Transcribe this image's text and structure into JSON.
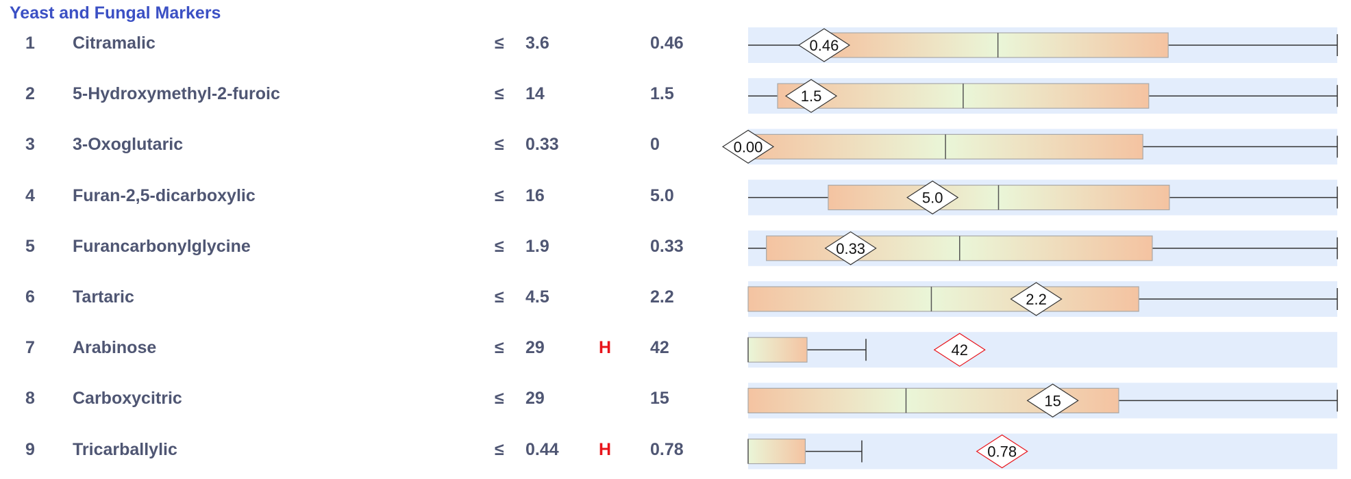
{
  "section": {
    "title": "Yeast and Fungal Markers"
  },
  "le_symbol": "≤",
  "colors": {
    "title": "#3b50c4",
    "text": "#4f5673",
    "flag": "#e8141b",
    "band": "#e3edfc",
    "box_outer": "#f4c3a1",
    "box_inner": "#eaf6d8",
    "diamond_high_border": "#e8141b"
  },
  "rows": [
    {
      "num": "1",
      "name": "Citramalic",
      "ref": "3.6",
      "flag": "",
      "value": "0.46",
      "marker_label": "0.46",
      "range_min": 0,
      "range_max": 3.6,
      "pos": 0.129,
      "box_end": 0.713,
      "median": 0.424,
      "whisker_end": 1.0,
      "high": false
    },
    {
      "num": "2",
      "name": "5-Hydroxymethyl-2-furoic",
      "ref": "14",
      "flag": "",
      "value": "1.5",
      "marker_label": "1.5",
      "range_min": 0,
      "range_max": 14,
      "pos": 0.107,
      "box_start": 0.05,
      "box_end": 0.68,
      "median": 0.365,
      "whisker_end": 1.0,
      "high": false
    },
    {
      "num": "3",
      "name": "3-Oxoglutaric",
      "ref": "0.33",
      "flag": "",
      "value": "0",
      "marker_label": "0.00",
      "range_min": 0,
      "range_max": 0.33,
      "pos": 0.0,
      "box_start": 0.0,
      "box_end": 0.67,
      "median": 0.335,
      "whisker_end": 1.0,
      "high": false
    },
    {
      "num": "4",
      "name": "Furan-2,5-dicarboxylic",
      "ref": "16",
      "flag": "",
      "value": "5.0",
      "marker_label": "5.0",
      "range_min": 0,
      "range_max": 16,
      "pos": 0.313,
      "box_start": 0.136,
      "box_end": 0.715,
      "median": 0.425,
      "whisker_end": 1.0,
      "high": false
    },
    {
      "num": "5",
      "name": "Furancarbonylglycine",
      "ref": "1.9",
      "flag": "",
      "value": "0.33",
      "marker_label": "0.33",
      "range_min": 0,
      "range_max": 1.9,
      "pos": 0.174,
      "box_start": 0.031,
      "box_end": 0.686,
      "median": 0.359,
      "whisker_end": 1.0,
      "high": false
    },
    {
      "num": "6",
      "name": "Tartaric",
      "ref": "4.5",
      "flag": "",
      "value": "2.2",
      "marker_label": "2.2",
      "range_min": 0,
      "range_max": 4.5,
      "pos": 0.489,
      "box_start": 0.0,
      "box_end": 0.663,
      "median": 0.311,
      "whisker_end": 1.0,
      "high": false
    },
    {
      "num": "7",
      "name": "Arabinose",
      "ref": "29",
      "flag": "H",
      "value": "42",
      "marker_label": "42",
      "range_min": 0,
      "range_max": 29,
      "pos": 0.359,
      "box_start": 0.0,
      "box_end": 0.1,
      "median": 0.0,
      "whisker_end": 0.2,
      "high": true
    },
    {
      "num": "8",
      "name": "Carboxycitric",
      "ref": "29",
      "flag": "",
      "value": "15",
      "marker_label": "15",
      "range_min": 0,
      "range_max": 29,
      "pos": 0.517,
      "box_start": 0.0,
      "box_end": 0.629,
      "median": 0.268,
      "whisker_end": 1.0,
      "high": false
    },
    {
      "num": "9",
      "name": "Tricarballylic",
      "ref": "0.44",
      "flag": "H",
      "value": "0.78",
      "marker_label": "0.78",
      "range_min": 0,
      "range_max": 0.44,
      "pos": 0.431,
      "box_start": 0.0,
      "box_end": 0.097,
      "median": 0.0,
      "whisker_end": 0.193,
      "high": true
    }
  ]
}
